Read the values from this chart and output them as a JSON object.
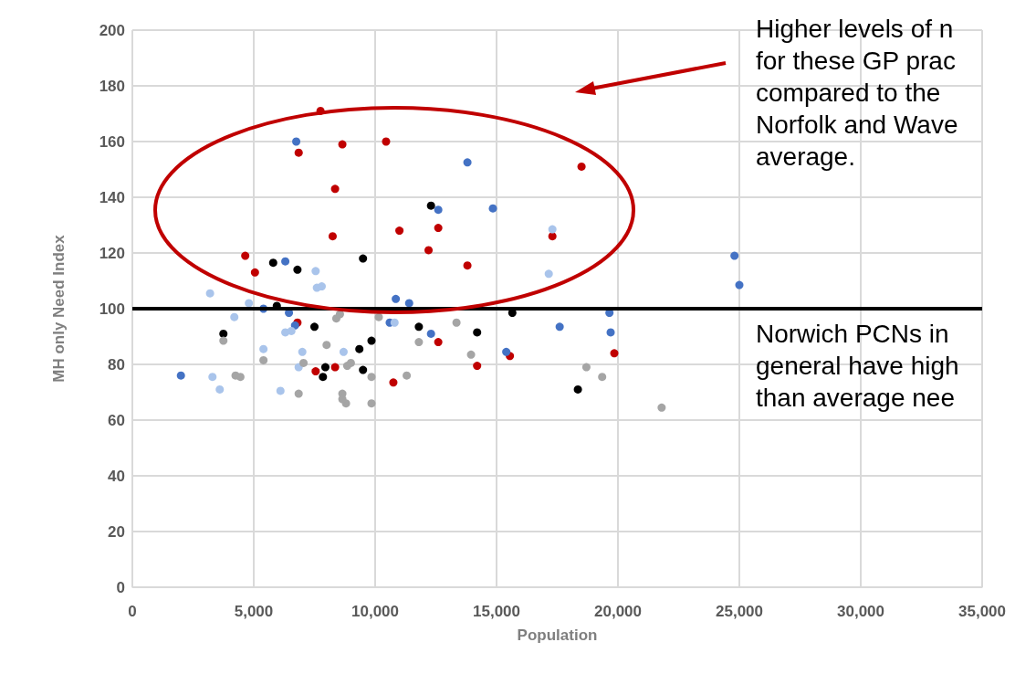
{
  "chart_data": {
    "type": "scatter",
    "xlabel": "Population",
    "ylabel": "MH only Need Index",
    "xlim": [
      0,
      35000
    ],
    "xticks": [
      0,
      {
        "value": 5000,
        "label": "5,000"
      },
      {
        "value": 10000,
        "label": "10,000"
      },
      {
        "value": 15000,
        "label": "15,000"
      },
      {
        "value": 20000,
        "label": "20,000"
      },
      {
        "value": 25000,
        "label": "25,000"
      },
      {
        "value": 30000,
        "label": "30,000"
      },
      {
        "value": 35000,
        "label": "35,000"
      }
    ],
    "ylim": [
      0,
      200
    ],
    "yticks": [
      0,
      20,
      40,
      60,
      80,
      100,
      120,
      140,
      160,
      180,
      200
    ],
    "grid": true,
    "marker": "circle",
    "series": [
      {
        "color": "#c00000",
        "x": [
          7750,
          6850,
          8650,
          10450,
          8350,
          8250,
          11000,
          12600,
          12200,
          13800,
          17300,
          18500,
          4650,
          5050,
          6800,
          7550,
          8350,
          10750,
          12600,
          14200,
          15550,
          19850
        ],
        "values": [
          171,
          156,
          159,
          160,
          143,
          126,
          128,
          129,
          121,
          115.5,
          126,
          151,
          119,
          113,
          95,
          77.5,
          79,
          73.5,
          88,
          79.5,
          83,
          84
        ]
      },
      {
        "color": "#4472c4",
        "x": [
          2000,
          6750,
          6300,
          13800,
          14850,
          12600,
          10850,
          11400,
          5400,
          6450,
          6700,
          12300,
          10600,
          15400,
          17600,
          19650,
          19700,
          24800,
          25000
        ],
        "values": [
          76,
          160,
          117,
          152.5,
          136,
          135.5,
          103.5,
          102,
          100,
          98.5,
          94,
          91,
          95,
          84.5,
          93.5,
          98.5,
          91.5,
          119,
          108.5
        ]
      },
      {
        "color": "#a9c4eb",
        "x": [
          3200,
          4200,
          4800,
          3300,
          3600,
          5400,
          6100,
          6300,
          6550,
          6850,
          7000,
          7550,
          7600,
          7800,
          8700,
          10800,
          17300,
          17150
        ],
        "values": [
          105.5,
          97,
          102,
          75.5,
          71,
          85.5,
          70.5,
          91.5,
          92,
          79,
          84.5,
          113.5,
          107.5,
          108,
          84.5,
          95,
          128.5,
          112.5
        ]
      },
      {
        "color": "#000000",
        "x": [
          3750,
          5800,
          6800,
          5950,
          7500,
          7950,
          7850,
          9350,
          9500,
          9850,
          9500,
          11800,
          12300,
          14200,
          15650,
          18350
        ],
        "values": [
          91,
          116.5,
          114,
          101,
          93.5,
          79,
          75.5,
          85.5,
          118,
          88.5,
          78,
          93.5,
          137,
          91.5,
          98.5,
          71
        ]
      },
      {
        "color": "#a5a5a5",
        "x": [
          3750,
          5400,
          6850,
          7050,
          8000,
          8400,
          8550,
          8650,
          8800,
          8850,
          9000,
          9850,
          9850,
          10150,
          11300,
          11800,
          13350,
          13950,
          4250,
          4450,
          18700,
          19350,
          21800,
          8650
        ],
        "values": [
          88.5,
          81.5,
          69.5,
          80.5,
          87,
          96.5,
          98,
          69.5,
          66,
          79.5,
          80.5,
          75.5,
          66,
          97,
          76,
          88,
          95,
          83.5,
          76,
          75.5,
          79,
          75.5,
          64.5,
          67.5
        ]
      }
    ],
    "ref_lines": [
      {
        "axis": "y",
        "value": 100,
        "color": "#000000",
        "line_style": "solid"
      }
    ],
    "annotations": [
      "Higher levels of n\nfor these GP prac\ncompared to the \nNorfolk and Wave\naverage.",
      "Norwich PCNs in \ngeneral have high\nthan average nee"
    ]
  }
}
